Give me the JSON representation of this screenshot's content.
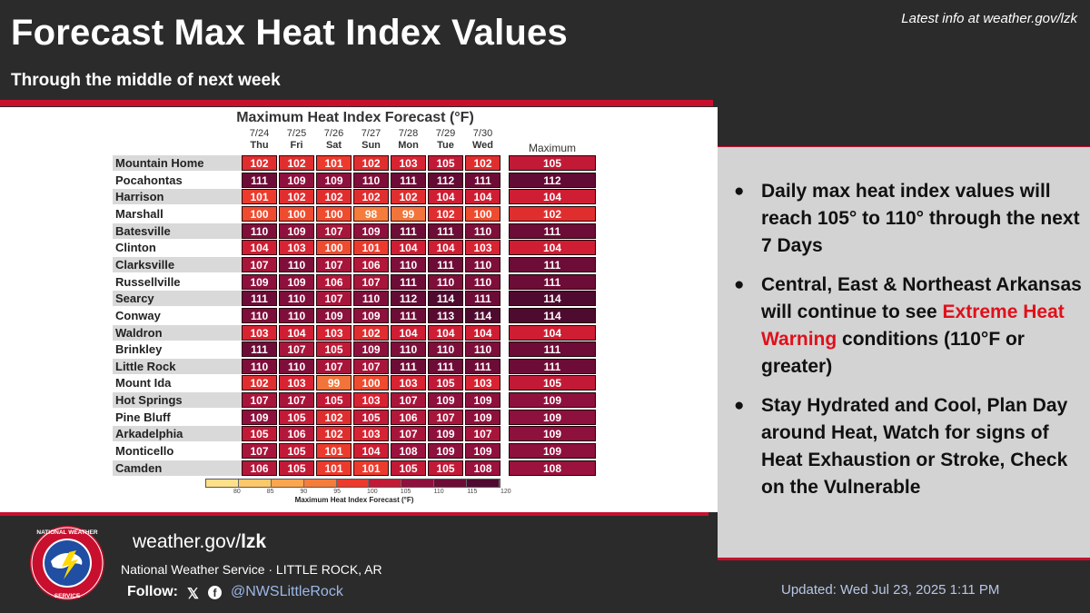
{
  "header": {
    "title": "Forecast Max Heat Index Values",
    "subtitle": "Through the middle of next week",
    "latest_info": "Latest info at weather.gov/lzk"
  },
  "table": {
    "title": "Maximum Heat Index Forecast (°F)",
    "max_header": "Maximum",
    "days": [
      {
        "date": "7/24",
        "day": "Thu"
      },
      {
        "date": "7/25",
        "day": "Fri"
      },
      {
        "date": "7/26",
        "day": "Sat"
      },
      {
        "date": "7/27",
        "day": "Sun"
      },
      {
        "date": "7/28",
        "day": "Mon"
      },
      {
        "date": "7/29",
        "day": "Tue"
      },
      {
        "date": "7/30",
        "day": "Wed"
      }
    ],
    "rows": [
      {
        "city": "Mountain Home",
        "values": [
          102,
          102,
          101,
          102,
          103,
          105,
          102
        ],
        "max": 105
      },
      {
        "city": "Pocahontas",
        "values": [
          111,
          109,
          109,
          110,
          111,
          112,
          111
        ],
        "max": 112
      },
      {
        "city": "Harrison",
        "values": [
          101,
          102,
          102,
          102,
          102,
          104,
          104
        ],
        "max": 104
      },
      {
        "city": "Marshall",
        "values": [
          100,
          100,
          100,
          98,
          99,
          102,
          100
        ],
        "max": 102
      },
      {
        "city": "Batesville",
        "values": [
          110,
          109,
          107,
          109,
          111,
          111,
          110
        ],
        "max": 111
      },
      {
        "city": "Clinton",
        "values": [
          104,
          103,
          100,
          101,
          104,
          104,
          103
        ],
        "max": 104
      },
      {
        "city": "Clarksville",
        "values": [
          107,
          110,
          107,
          106,
          110,
          111,
          110
        ],
        "max": 111
      },
      {
        "city": "Russellville",
        "values": [
          109,
          109,
          106,
          107,
          111,
          110,
          110
        ],
        "max": 111
      },
      {
        "city": "Searcy",
        "values": [
          111,
          110,
          107,
          110,
          112,
          114,
          111
        ],
        "max": 114
      },
      {
        "city": "Conway",
        "values": [
          110,
          110,
          109,
          109,
          111,
          113,
          114
        ],
        "max": 114
      },
      {
        "city": "Waldron",
        "values": [
          103,
          104,
          103,
          102,
          104,
          104,
          104
        ],
        "max": 104
      },
      {
        "city": "Brinkley",
        "values": [
          111,
          107,
          105,
          109,
          110,
          110,
          110
        ],
        "max": 111
      },
      {
        "city": "Little Rock",
        "values": [
          110,
          110,
          107,
          107,
          111,
          111,
          111
        ],
        "max": 111
      },
      {
        "city": "Mount Ida",
        "values": [
          102,
          103,
          99,
          100,
          103,
          105,
          103
        ],
        "max": 105
      },
      {
        "city": "Hot Springs",
        "values": [
          107,
          107,
          105,
          103,
          107,
          109,
          109
        ],
        "max": 109
      },
      {
        "city": "Pine Bluff",
        "values": [
          109,
          105,
          102,
          105,
          106,
          107,
          109
        ],
        "max": 109
      },
      {
        "city": "Arkadelphia",
        "values": [
          105,
          106,
          102,
          103,
          107,
          109,
          107
        ],
        "max": 109
      },
      {
        "city": "Monticello",
        "values": [
          107,
          105,
          101,
          104,
          108,
          109,
          109
        ],
        "max": 109
      },
      {
        "city": "Camden",
        "values": [
          106,
          105,
          101,
          101,
          105,
          105,
          108
        ],
        "max": 108
      }
    ],
    "legend": {
      "ticks": [
        "80",
        "85",
        "90",
        "95",
        "100",
        "105",
        "110",
        "115",
        "120"
      ],
      "label": "Maximum Heat Index Forecast (°F)"
    }
  },
  "info": {
    "bullets": [
      {
        "text": "Daily max heat index values will reach 105° to 110° through the next 7 Days"
      },
      {
        "pre": "Central, East & Northeast Arkansas will continue to see ",
        "highlight": "Extreme Heat Warning",
        "post": " conditions (110°F or greater)"
      },
      {
        "text": "Stay Hydrated and Cool, Plan Day around Heat, Watch for signs of Heat Exhaustion or Stroke, Check on the Vulnerable"
      }
    ]
  },
  "footer": {
    "url_prefix": "weather.gov/",
    "url_bold": "lzk",
    "office": "National Weather Service · LITTLE ROCK, AR",
    "follow_label": "Follow:",
    "x_icon_glyph": "𝕏",
    "fb_icon_glyph": "f",
    "handle": "@NWSLittleRock",
    "updated": "Updated: Wed Jul 23, 2025 1:11 PM",
    "logo_text": "NATIONAL WEATHER SERVICE"
  },
  "colors": {
    "red_accent": "#c8102e",
    "warning_text": "#e0101a",
    "handle_blue": "#9db8e8"
  }
}
